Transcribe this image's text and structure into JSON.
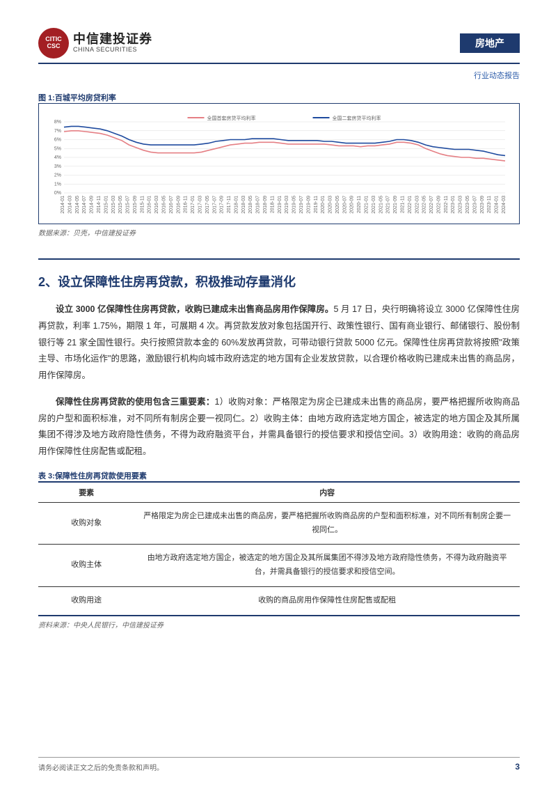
{
  "header": {
    "logo_inner": "CITIC CSC",
    "logo_cn": "中信建投证券",
    "logo_en": "CHINA SECURITIES",
    "sector": "房地产",
    "sub_report": "行业动态报告"
  },
  "figure1": {
    "title": "图 1:百城平均房贷利率",
    "type": "line",
    "legend": [
      "全国首套房贷平均利率",
      "全国二套房贷平均利率"
    ],
    "series_colors": [
      "#e57f84",
      "#1e4a9e"
    ],
    "ylim": [
      0,
      8
    ],
    "ytick_step": 1,
    "y_suffix": "%",
    "background_color": "#ffffff",
    "grid_color": "#dddddd",
    "x_labels": [
      "2014-01",
      "2014-03",
      "2014-05",
      "2014-07",
      "2014-09",
      "2014-11",
      "2015-01",
      "2015-03",
      "2015-05",
      "2015-07",
      "2015-09",
      "2015-11",
      "2016-01",
      "2016-03",
      "2016-05",
      "2016-07",
      "2016-09",
      "2016-11",
      "2017-01",
      "2017-03",
      "2017-05",
      "2017-07",
      "2017-09",
      "2017-11",
      "2018-01",
      "2018-03",
      "2018-05",
      "2018-07",
      "2018-09",
      "2018-11",
      "2019-01",
      "2019-03",
      "2019-05",
      "2019-07",
      "2019-09",
      "2019-11",
      "2020-01",
      "2020-03",
      "2020-05",
      "2020-07",
      "2020-09",
      "2020-11",
      "2021-01",
      "2021-03",
      "2021-05",
      "2021-07",
      "2021-09",
      "2021-11",
      "2022-01",
      "2022-03",
      "2022-05",
      "2022-07",
      "2022-09",
      "2022-11",
      "2023-01",
      "2023-03",
      "2023-05",
      "2023-07",
      "2023-09",
      "2023-11",
      "2024-01",
      "2024-03"
    ],
    "series1_values": [
      6.9,
      7.0,
      7.0,
      6.9,
      6.8,
      6.7,
      6.5,
      6.2,
      5.9,
      5.4,
      5.1,
      4.8,
      4.6,
      4.5,
      4.5,
      4.5,
      4.5,
      4.5,
      4.5,
      4.6,
      4.8,
      5.0,
      5.2,
      5.4,
      5.5,
      5.6,
      5.6,
      5.7,
      5.7,
      5.7,
      5.6,
      5.5,
      5.5,
      5.5,
      5.5,
      5.5,
      5.5,
      5.4,
      5.3,
      5.3,
      5.3,
      5.2,
      5.3,
      5.3,
      5.4,
      5.5,
      5.7,
      5.7,
      5.6,
      5.4,
      5.0,
      4.7,
      4.4,
      4.2,
      4.1,
      4.0,
      4.0,
      3.9,
      3.9,
      3.8,
      3.7,
      3.6
    ],
    "series2_values": [
      7.4,
      7.5,
      7.5,
      7.4,
      7.3,
      7.2,
      7.0,
      6.7,
      6.4,
      6.0,
      5.7,
      5.5,
      5.4,
      5.4,
      5.4,
      5.4,
      5.4,
      5.4,
      5.4,
      5.5,
      5.6,
      5.8,
      5.9,
      6.0,
      6.0,
      6.0,
      6.1,
      6.1,
      6.1,
      6.1,
      6.0,
      5.9,
      5.9,
      5.9,
      5.9,
      5.9,
      5.8,
      5.8,
      5.7,
      5.6,
      5.6,
      5.6,
      5.6,
      5.6,
      5.7,
      5.8,
      6.0,
      6.0,
      5.9,
      5.7,
      5.4,
      5.2,
      5.1,
      5.0,
      4.9,
      4.9,
      4.9,
      4.8,
      4.7,
      4.5,
      4.3,
      4.2
    ],
    "source": "数据来源：贝壳，中信建投证券"
  },
  "section2": {
    "title": "2、设立保障性住房再贷款，积极推动存量消化",
    "para1_bold": "设立 3000 亿保障性住房再贷款，收购已建成未出售商品房用作保障房。",
    "para1_rest": "5 月 17 日，央行明确将设立 3000 亿保障性住房再贷款，利率 1.75%，期限 1 年，可展期 4 次。再贷款发放对象包括国开行、政策性银行、国有商业银行、邮储银行、股份制银行等 21 家全国性银行。央行按照贷款本金的 60%发放再贷款，可带动银行贷款 5000 亿元。保障性住房再贷款将按照\"政策主导、市场化运作\"的思路，激励银行机构向城市政府选定的地方国有企业发放贷款，以合理价格收购已建成未出售的商品房，用作保障房。",
    "para2_bold": "保障性住房再贷款的使用包含三重要素：",
    "para2_rest": "1）收购对象：严格限定为房企已建成未出售的商品房，要严格把握所收购商品房的户型和面积标准，对不同所有制房企要一视同仁。2）收购主体：由地方政府选定地方国企，被选定的地方国企及其所属集团不得涉及地方政府隐性债务，不得为政府融资平台，并需具备银行的授信要求和授信空间。3）收购用途：收购的商品房用作保障性住房配售或配租。"
  },
  "table3": {
    "title": "表 3:保障性住房再贷款使用要素",
    "cols": [
      "要素",
      "内容"
    ],
    "rows": [
      [
        "收购对象",
        "严格限定为房企已建成未出售的商品房，要严格把握所收购商品房的户型和面积标准，对不同所有制房企要一视同仁。"
      ],
      [
        "收购主体",
        "由地方政府选定地方国企，被选定的地方国企及其所属集团不得涉及地方政府隐性债务，不得为政府融资平台，并需具备银行的授信要求和授信空间。"
      ],
      [
        "收购用途",
        "收购的商品房用作保障性住房配售或配租"
      ]
    ],
    "source": "资料来源：中央人民银行，中信建投证券"
  },
  "footer": {
    "disclaimer": "请务必阅读正文之后的免责条款和声明。",
    "page": "3"
  }
}
